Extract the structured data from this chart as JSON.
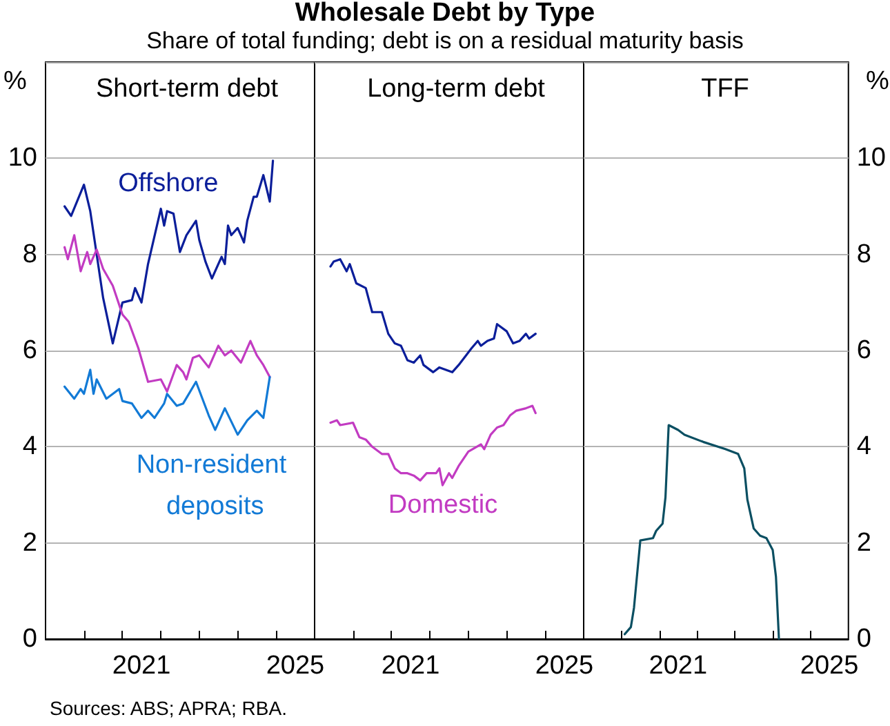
{
  "chart_data": [
    {
      "type": "line",
      "title": "Short-term debt",
      "ylabel": "%",
      "annotations": [
        "Wholesale Debt by Type",
        "Share of total funding; debt is on a residual maturity basis",
        "Sources: ABS; APRA; RBA."
      ],
      "xlim": [
        "2019-01",
        "2026-01"
      ],
      "xticks": [
        {
          "value": "2020-01",
          "label": null
        },
        {
          "value": "2021-01",
          "label": null
        },
        {
          "value": "2021-07",
          "label": "2021"
        },
        {
          "value": "2022-01",
          "label": null
        },
        {
          "value": "2023-01",
          "label": null
        },
        {
          "value": "2024-01",
          "label": null
        },
        {
          "value": "2025-01",
          "label": null
        },
        {
          "value": "2025-07",
          "label": "2025"
        }
      ],
      "ylim": [
        0,
        12
      ],
      "yticks": [
        0,
        2,
        4,
        6,
        8,
        10
      ],
      "grid": "y",
      "series": [
        {
          "name": "Offshore",
          "color": "#0b1e9a",
          "x": [
            "2019-07",
            "2019-09",
            "2020-01",
            "2020-03",
            "2020-07",
            "2020-10",
            "2021-01",
            "2021-04",
            "2021-05",
            "2021-07",
            "2021-09",
            "2022-01",
            "2022-02",
            "2022-03",
            "2022-05",
            "2022-07",
            "2022-09",
            "2022-12",
            "2023-01",
            "2023-03",
            "2023-05",
            "2023-08",
            "2023-09",
            "2023-10",
            "2023-11",
            "2024-01",
            "2024-03",
            "2024-04",
            "2024-06",
            "2024-07",
            "2024-09",
            "2024-11",
            "2024-12"
          ],
          "values": [
            9.0,
            8.8,
            9.45,
            8.9,
            7.1,
            6.15,
            7.0,
            7.05,
            7.3,
            7.0,
            7.8,
            8.95,
            8.6,
            8.9,
            8.85,
            8.05,
            8.4,
            8.7,
            8.3,
            7.85,
            7.5,
            7.95,
            7.8,
            8.6,
            8.4,
            8.55,
            8.25,
            8.7,
            9.2,
            9.2,
            9.65,
            9.1,
            9.95
          ]
        },
        {
          "color": "#c23bc2",
          "x": [
            "2019-07",
            "2019-08",
            "2019-10",
            "2019-12",
            "2020-02",
            "2020-03",
            "2020-05",
            "2020-07",
            "2020-10",
            "2020-12",
            "2021-01",
            "2021-03",
            "2021-06",
            "2021-09",
            "2022-01",
            "2022-03",
            "2022-06",
            "2022-08",
            "2022-09",
            "2022-11",
            "2023-01",
            "2023-04",
            "2023-07",
            "2023-09",
            "2023-11",
            "2024-02",
            "2024-05",
            "2024-07",
            "2024-09",
            "2024-11"
          ],
          "values": [
            8.15,
            7.9,
            8.4,
            7.65,
            8.05,
            7.8,
            8.1,
            7.7,
            7.35,
            6.95,
            6.75,
            6.6,
            6.05,
            5.35,
            5.4,
            5.15,
            5.7,
            5.55,
            5.4,
            5.85,
            5.9,
            5.65,
            6.1,
            5.9,
            6.0,
            5.75,
            6.2,
            5.9,
            5.7,
            5.45
          ]
        },
        {
          "name": "Non-resident deposits",
          "color": "#127ad6",
          "x": [
            "2019-07",
            "2019-10",
            "2019-12",
            "2020-01",
            "2020-03",
            "2020-04",
            "2020-05",
            "2020-08",
            "2020-12",
            "2021-01",
            "2021-04",
            "2021-07",
            "2021-09",
            "2021-11",
            "2022-02",
            "2022-03",
            "2022-06",
            "2022-08",
            "2022-12",
            "2023-04",
            "2023-06",
            "2023-09",
            "2024-01",
            "2024-04",
            "2024-07",
            "2024-09",
            "2024-11"
          ],
          "values": [
            5.25,
            5.0,
            5.2,
            5.1,
            5.6,
            5.1,
            5.4,
            5.0,
            5.2,
            4.95,
            4.9,
            4.6,
            4.75,
            4.6,
            4.9,
            5.1,
            4.85,
            4.9,
            5.35,
            4.65,
            4.35,
            4.8,
            4.25,
            4.55,
            4.75,
            4.6,
            5.45
          ]
        }
      ]
    },
    {
      "type": "line",
      "title": "Long-term debt",
      "tick_labels": "x",
      "xlim": [
        "2019-01",
        "2026-01"
      ],
      "xticks": [
        {
          "value": "2020-01",
          "label": null
        },
        {
          "value": "2021-01",
          "label": null
        },
        {
          "value": "2021-07",
          "label": "2021"
        },
        {
          "value": "2022-01",
          "label": null
        },
        {
          "value": "2023-01",
          "label": null
        },
        {
          "value": "2024-01",
          "label": null
        },
        {
          "value": "2025-01",
          "label": null
        },
        {
          "value": "2025-07",
          "label": "2025"
        }
      ],
      "ylim": [
        0,
        12
      ],
      "yticks": [
        0,
        2,
        4,
        6,
        8,
        10
      ],
      "grid": "y",
      "series": [
        {
          "color": "#0b1e9a",
          "x": [
            "2019-06",
            "2019-07",
            "2019-09",
            "2019-11",
            "2019-12",
            "2020-02",
            "2020-05",
            "2020-07",
            "2020-10",
            "2020-12",
            "2021-02",
            "2021-04",
            "2021-06",
            "2021-08",
            "2021-10",
            "2021-11",
            "2022-02",
            "2022-04",
            "2022-08",
            "2022-10",
            "2023-02",
            "2023-04",
            "2023-05",
            "2023-07",
            "2023-09",
            "2023-10",
            "2024-01",
            "2024-03",
            "2024-05",
            "2024-07",
            "2024-08",
            "2024-10"
          ],
          "values": [
            7.75,
            7.85,
            7.9,
            7.65,
            7.8,
            7.4,
            7.3,
            6.8,
            6.8,
            6.35,
            6.15,
            6.1,
            5.8,
            5.75,
            5.9,
            5.7,
            5.55,
            5.65,
            5.55,
            5.7,
            6.05,
            6.2,
            6.1,
            6.2,
            6.25,
            6.55,
            6.4,
            6.15,
            6.2,
            6.35,
            6.25,
            6.35
          ]
        },
        {
          "name": "Domestic",
          "color": "#c23bc2",
          "x": [
            "2019-06",
            "2019-08",
            "2019-09",
            "2020-01",
            "2020-03",
            "2020-05",
            "2020-07",
            "2020-10",
            "2020-12",
            "2021-02",
            "2021-04",
            "2021-06",
            "2021-08",
            "2021-10",
            "2021-12",
            "2022-03",
            "2022-04",
            "2022-05",
            "2022-07",
            "2022-08",
            "2022-10",
            "2023-01",
            "2023-05",
            "2023-06",
            "2023-08",
            "2023-10",
            "2023-12",
            "2024-02",
            "2024-04",
            "2024-07",
            "2024-09",
            "2024-10"
          ],
          "values": [
            4.5,
            4.55,
            4.45,
            4.5,
            4.2,
            4.15,
            4.0,
            3.85,
            3.85,
            3.55,
            3.45,
            3.45,
            3.4,
            3.3,
            3.45,
            3.45,
            3.55,
            3.2,
            3.45,
            3.35,
            3.6,
            3.9,
            4.05,
            3.95,
            4.25,
            4.4,
            4.45,
            4.65,
            4.75,
            4.8,
            4.85,
            4.7
          ]
        }
      ]
    },
    {
      "type": "line",
      "title": "TFF",
      "y2label": "%",
      "xlim": [
        "2019-01",
        "2026-01"
      ],
      "xticks": [
        {
          "value": "2020-01",
          "label": null
        },
        {
          "value": "2021-01",
          "label": null
        },
        {
          "value": "2021-07",
          "label": "2021"
        },
        {
          "value": "2022-01",
          "label": null
        },
        {
          "value": "2023-01",
          "label": null
        },
        {
          "value": "2024-01",
          "label": null
        },
        {
          "value": "2025-01",
          "label": null
        },
        {
          "value": "2025-07",
          "label": "2025"
        }
      ],
      "y2lim": [
        0,
        12
      ],
      "y2ticks": [
        0,
        2,
        4,
        6,
        8,
        10
      ],
      "grid": "y",
      "series": [
        {
          "color": "#0b4f62",
          "axis": "y2",
          "x": [
            "2020-02",
            "2020-04",
            "2020-05",
            "2020-07",
            "2020-11",
            "2020-12",
            "2021-02",
            "2021-03",
            "2021-04",
            "2021-07",
            "2021-09",
            "2022-03",
            "2022-10",
            "2023-02",
            "2023-04",
            "2023-05",
            "2023-07",
            "2023-09",
            "2023-11",
            "2024-01",
            "2024-02",
            "2024-03"
          ],
          "values": [
            0.1,
            0.25,
            0.65,
            2.05,
            2.1,
            2.25,
            2.4,
            2.95,
            4.45,
            4.35,
            4.25,
            4.1,
            3.95,
            3.85,
            3.55,
            2.9,
            2.3,
            2.15,
            2.1,
            1.85,
            1.3,
            0
          ]
        }
      ]
    }
  ]
}
